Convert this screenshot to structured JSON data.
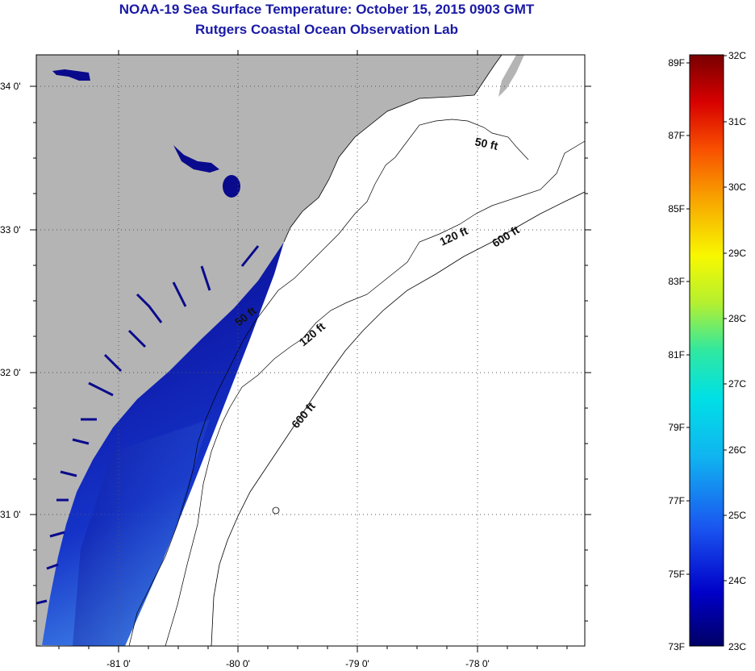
{
  "title_line1": "NOAA-19 Sea Surface Temperature:  October 15, 2015 0903 GMT",
  "title_line2": "Rutgers Coastal Ocean Observation Lab",
  "map": {
    "lat_labels": [
      "34 0'",
      "33 0'",
      "32 0'",
      "31 0'"
    ],
    "lon_labels": [
      "-81 0'",
      "-80 0'",
      "-79 0'",
      "-78 0'"
    ],
    "contour_labels": [
      "50 ft",
      "120 ft",
      "600 ft",
      "50 ft",
      "120 ft",
      "600 ft"
    ]
  },
  "colorbar": {
    "fahrenheit": [
      "89F",
      "87F",
      "85F",
      "83F",
      "81F",
      "79F",
      "77F",
      "75F",
      "73F"
    ],
    "celsius": [
      "32C",
      "31C",
      "30C",
      "29C",
      "28C",
      "27C",
      "26C",
      "25C",
      "24C",
      "23C"
    ]
  },
  "colors": {
    "land": "#b4b4b4",
    "title": "#1a1aa6",
    "sst_dark": "#0a0a8c",
    "sst_mid": "#1533c8",
    "sst_light": "#3d7de6"
  }
}
